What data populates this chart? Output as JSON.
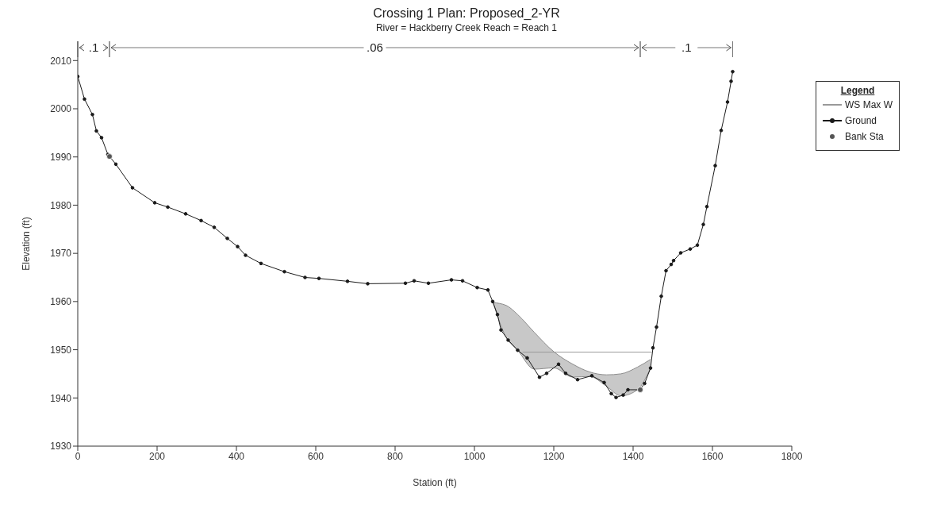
{
  "chart_data": {
    "type": "line",
    "title": "Crossing 1      Plan: Proposed_2-YR",
    "subtitle": "River = Hackberry Creek   Reach = Reach 1",
    "xlabel": "Station (ft)",
    "ylabel": "Elevation (ft)",
    "legend_title": "Legend",
    "legend": "right",
    "grid": false,
    "xlim": [
      0,
      1800
    ],
    "xticks": [
      0,
      200,
      400,
      600,
      800,
      1000,
      1200,
      1400,
      1600,
      1800
    ],
    "ylim": [
      1930,
      2014
    ],
    "yticks": [
      1930,
      1940,
      1950,
      1960,
      1970,
      1980,
      1990,
      2000,
      2010
    ],
    "annotations": [
      ".1",
      ".06",
      ".1"
    ],
    "series": [
      {
        "type": "area",
        "color": "#c8c8c8",
        "x": [
          1046,
          1080,
          1109,
          1151,
          1200,
          1248,
          1290,
          1333,
          1369,
          1411,
          1444
        ],
        "values": [
          1959.8,
          1959.2,
          1957.3,
          1953.6,
          1949.6,
          1947,
          1945.4,
          1944.8,
          1945,
          1946.4,
          1948
        ]
      },
      {
        "name": "WS Max W",
        "color": "#999999",
        "marker": "none",
        "x": [
          1121,
          1447
        ],
        "values": [
          1949.5,
          1949.5
        ]
      },
      {
        "name": "Ground",
        "color": "#1a1a1a",
        "marker": "circle",
        "x": [
          0,
          17,
          37,
          47,
          60,
          76,
          96,
          138,
          194,
          227,
          272,
          311,
          344,
          377,
          403,
          423,
          462,
          521,
          573,
          608,
          680,
          731,
          826,
          848,
          884,
          942,
          970,
          1007,
          1034,
          1046,
          1058,
          1067,
          1085,
          1109,
          1133,
          1164,
          1182,
          1212,
          1230,
          1260,
          1296,
          1327,
          1345,
          1357,
          1375,
          1387,
          1417,
          1429,
          1444,
          1450,
          1459,
          1471,
          1483,
          1496,
          1502,
          1520,
          1544,
          1562,
          1577,
          1586,
          1607,
          1622,
          1638,
          1647,
          1651
        ],
        "values": [
          2006.7,
          2002.0,
          1998.8,
          1995.4,
          1994.0,
          1990.5,
          1988.5,
          1983.6,
          1980.5,
          1979.6,
          1978.2,
          1976.8,
          1975.4,
          1973.1,
          1971.4,
          1969.6,
          1967.9,
          1966.2,
          1965.0,
          1964.8,
          1964.2,
          1963.7,
          1963.8,
          1964.3,
          1963.8,
          1964.5,
          1964.3,
          1962.9,
          1962.4,
          1960.0,
          1957.3,
          1954.1,
          1952.0,
          1949.9,
          1948.3,
          1944.3,
          1945.1,
          1947.0,
          1945.1,
          1943.8,
          1944.6,
          1943.2,
          1940.9,
          1940.1,
          1940.6,
          1941.7,
          1941.7,
          1943.0,
          1946.2,
          1950.4,
          1954.7,
          1961.1,
          1966.4,
          1967.7,
          1968.5,
          1970.1,
          1970.9,
          1971.7,
          1976.0,
          1979.7,
          1988.2,
          1995.5,
          2001.4,
          2005.7,
          2007.7
        ]
      },
      {
        "type": "scatter",
        "name": "Bank Sta",
        "color": "#555555",
        "marker": "circle",
        "x": [
          80,
          1418
        ],
        "values": [
          1990.1,
          1941.7
        ]
      }
    ]
  }
}
